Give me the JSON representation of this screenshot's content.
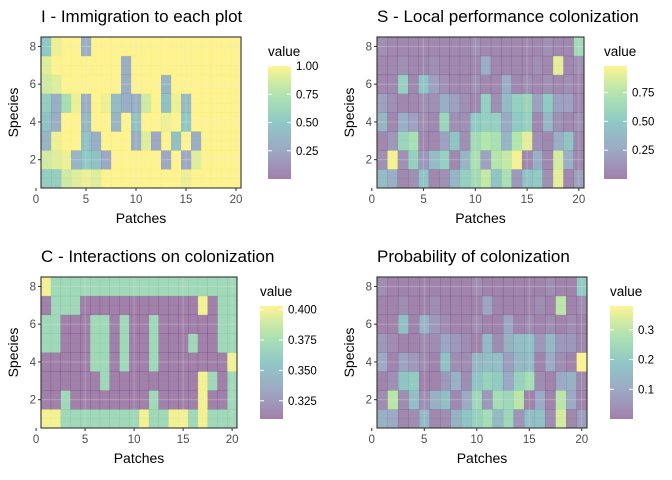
{
  "panel_titles": [
    "I - Immigration to each plot",
    "S - Local performance colonization",
    "C - Interactions on colonization",
    "Probability of colonization"
  ],
  "palette": {
    "stops": [
      "#440154",
      "#3b528b",
      "#21918c",
      "#5ec962",
      "#fde725"
    ],
    "opacity": 0.5,
    "grid_major": "#e6e6e6",
    "grid_minor": "#f2f2f2",
    "panel_border": "#333333"
  },
  "chart_data": [
    {
      "type": "heatmap",
      "title": "I - Immigration to each plot",
      "xlabel": "Patches",
      "ylabel": "Species",
      "xlim": [
        0.5,
        20.5
      ],
      "ylim": [
        0.5,
        8.5
      ],
      "x_ticks": [
        0,
        5,
        10,
        15,
        20
      ],
      "y_ticks": [
        2,
        4,
        6,
        8
      ],
      "legend": {
        "title": "value",
        "limits": [
          0.0,
          1.0
        ],
        "breaks": [
          0.25,
          0.5,
          0.75,
          1.0
        ],
        "labels": [
          "0.25",
          "0.50",
          "0.75",
          "1.00"
        ]
      },
      "x": [
        1,
        2,
        3,
        4,
        5,
        6,
        7,
        8,
        9,
        10,
        11,
        12,
        13,
        14,
        15,
        16,
        17,
        18,
        19,
        20
      ],
      "y": [
        1,
        2,
        3,
        4,
        5,
        6,
        7,
        8
      ],
      "z": [
        [
          0.55,
          0.55,
          0.85,
          0.9,
          0.95,
          0.9,
          1,
          1,
          1,
          1,
          1,
          1,
          1,
          1,
          0.95,
          1,
          1,
          1,
          1,
          1
        ],
        [
          0.85,
          0.9,
          0.95,
          0.35,
          0.5,
          0.45,
          0.25,
          1,
          1,
          1,
          1,
          1,
          0.25,
          1,
          0.25,
          0.9,
          1,
          1,
          1,
          1
        ],
        [
          0.35,
          0.95,
          1,
          1,
          0.45,
          0.3,
          1,
          1,
          1,
          0.3,
          0.9,
          0.25,
          1,
          0.45,
          1,
          0.3,
          1,
          1,
          1,
          1
        ],
        [
          0.45,
          0.3,
          1,
          1,
          0.35,
          1,
          1,
          0.35,
          1,
          0.45,
          1,
          1,
          0.95,
          1,
          0.5,
          1,
          1,
          1,
          1,
          1
        ],
        [
          0.55,
          0.3,
          0.7,
          0.95,
          0.3,
          1,
          0.95,
          0.4,
          0.3,
          0.3,
          0.85,
          1,
          0.45,
          0.95,
          0.4,
          1,
          1,
          1,
          1,
          1
        ],
        [
          0.85,
          0.9,
          1,
          1,
          1,
          1,
          1,
          1,
          0.3,
          1,
          1,
          1,
          0.35,
          1,
          1,
          1,
          1,
          1,
          1,
          1
        ],
        [
          0.9,
          1,
          1,
          1,
          1,
          1,
          1,
          1,
          0.3,
          1,
          1,
          1,
          1,
          1,
          1,
          1,
          1,
          1,
          1,
          1
        ],
        [
          0.5,
          0.95,
          1,
          1,
          0.3,
          1,
          1,
          1,
          1,
          1,
          1,
          1,
          1,
          1,
          1,
          1,
          1,
          1,
          1,
          1
        ]
      ]
    },
    {
      "type": "heatmap",
      "title": "S - Local performance colonization",
      "xlabel": "Patches",
      "ylabel": "Species",
      "xlim": [
        0.5,
        20.5
      ],
      "ylim": [
        0.5,
        8.5
      ],
      "x_ticks": [
        0,
        5,
        10,
        15,
        20
      ],
      "y_ticks": [
        2,
        4,
        6,
        8
      ],
      "legend": {
        "title": "value",
        "limits": [
          0.0,
          0.98
        ],
        "breaks": [
          0.25,
          0.5,
          0.75
        ],
        "labels": [
          "0.25",
          "0.50",
          "0.75"
        ]
      },
      "x": [
        1,
        2,
        3,
        4,
        5,
        6,
        7,
        8,
        9,
        10,
        11,
        12,
        13,
        14,
        15,
        16,
        17,
        18,
        19,
        20
      ],
      "y": [
        1,
        2,
        3,
        4,
        5,
        6,
        7,
        8
      ],
      "z": [
        [
          0.4,
          0.3,
          0.05,
          0.1,
          0.45,
          0.05,
          0.1,
          0.35,
          0.55,
          0.65,
          0.8,
          0.45,
          0.7,
          0.15,
          0.45,
          0.5,
          0.1,
          0.9,
          0.05,
          0.2
        ],
        [
          0.1,
          0.95,
          0.1,
          0.55,
          0.15,
          0.4,
          0.55,
          0.05,
          0.35,
          0.7,
          0.2,
          0.75,
          0.8,
          0.95,
          0.05,
          0.3,
          0.05,
          0.85,
          0.3,
          0.05
        ],
        [
          0.05,
          0.15,
          0.6,
          0.7,
          0.05,
          0.05,
          0.2,
          0.45,
          0.1,
          0.65,
          0.75,
          0.7,
          0.35,
          0.75,
          0.9,
          0.1,
          0.05,
          0.3,
          0.45,
          0.05
        ],
        [
          0.35,
          0.05,
          0.3,
          0.2,
          0.1,
          0.05,
          0.6,
          0.1,
          0.1,
          0.5,
          0.55,
          0.55,
          0.25,
          0.5,
          0.55,
          0.05,
          0.35,
          0.1,
          0.05,
          0.1
        ],
        [
          0.2,
          0.1,
          0.05,
          0.05,
          0.1,
          0.1,
          0.3,
          0.2,
          0.1,
          0.05,
          0.55,
          0.1,
          0.4,
          0.55,
          0.6,
          0.2,
          0.5,
          0.2,
          0.2,
          0.05
        ],
        [
          0.05,
          0.05,
          0.55,
          0.05,
          0.45,
          0.2,
          0.1,
          0.05,
          0.05,
          0.1,
          0.05,
          0.05,
          0.3,
          0.05,
          0.1,
          0.05,
          0.1,
          0.05,
          0.1,
          0.05
        ],
        [
          0.05,
          0.05,
          0.1,
          0.05,
          0.05,
          0.1,
          0.05,
          0.05,
          0.05,
          0.05,
          0.3,
          0.05,
          0.05,
          0.05,
          0.05,
          0.1,
          0.05,
          0.9,
          0.05,
          0.1
        ],
        [
          0.1,
          0.05,
          0.05,
          0.05,
          0.05,
          0.05,
          0.05,
          0.05,
          0.05,
          0.1,
          0.05,
          0.05,
          0.05,
          0.05,
          0.05,
          0.05,
          0.1,
          0.05,
          0.05,
          0.65
        ]
      ]
    },
    {
      "type": "heatmap",
      "title": "C - Interactions on colonization",
      "xlabel": "Patches",
      "ylabel": "Species",
      "xlim": [
        0.5,
        20.5
      ],
      "ylim": [
        0.5,
        8.5
      ],
      "x_ticks": [
        0,
        5,
        10,
        15,
        20
      ],
      "y_ticks": [
        2,
        4,
        6,
        8
      ],
      "legend": {
        "title": "value",
        "limits": [
          0.31,
          0.403
        ],
        "breaks": [
          0.325,
          0.35,
          0.375,
          0.4
        ],
        "labels": [
          "0.325",
          "0.350",
          "0.375",
          "0.400"
        ]
      },
      "x": [
        1,
        2,
        3,
        4,
        5,
        6,
        7,
        8,
        9,
        10,
        11,
        12,
        13,
        14,
        15,
        16,
        17,
        18,
        19,
        20
      ],
      "y": [
        1,
        2,
        3,
        4,
        5,
        6,
        7,
        8
      ],
      "z": [
        [
          0.4,
          0.4,
          0.37,
          0.37,
          0.37,
          0.37,
          0.37,
          0.37,
          0.37,
          0.37,
          0.4,
          0.37,
          0.37,
          0.4,
          0.4,
          0.37,
          0.4,
          0.37,
          0.37,
          0.37
        ],
        [
          0.31,
          0.31,
          0.37,
          0.31,
          0.31,
          0.31,
          0.31,
          0.31,
          0.31,
          0.31,
          0.31,
          0.37,
          0.31,
          0.31,
          0.31,
          0.31,
          0.4,
          0.31,
          0.31,
          0.37
        ],
        [
          0.31,
          0.31,
          0.31,
          0.31,
          0.31,
          0.31,
          0.37,
          0.31,
          0.31,
          0.31,
          0.31,
          0.31,
          0.31,
          0.31,
          0.31,
          0.31,
          0.4,
          0.37,
          0.31,
          0.37
        ],
        [
          0.31,
          0.31,
          0.31,
          0.31,
          0.31,
          0.37,
          0.37,
          0.31,
          0.37,
          0.31,
          0.31,
          0.37,
          0.31,
          0.31,
          0.31,
          0.31,
          0.31,
          0.31,
          0.31,
          0.4
        ],
        [
          0.37,
          0.37,
          0.31,
          0.31,
          0.31,
          0.37,
          0.37,
          0.31,
          0.37,
          0.31,
          0.31,
          0.37,
          0.31,
          0.31,
          0.31,
          0.37,
          0.31,
          0.31,
          0.37,
          0.37
        ],
        [
          0.37,
          0.37,
          0.31,
          0.31,
          0.31,
          0.37,
          0.37,
          0.31,
          0.37,
          0.31,
          0.31,
          0.37,
          0.31,
          0.31,
          0.31,
          0.31,
          0.31,
          0.31,
          0.37,
          0.37
        ],
        [
          0.31,
          0.37,
          0.37,
          0.37,
          0.31,
          0.31,
          0.31,
          0.31,
          0.31,
          0.31,
          0.31,
          0.31,
          0.31,
          0.31,
          0.31,
          0.31,
          0.4,
          0.31,
          0.37,
          0.37
        ],
        [
          0.4,
          0.37,
          0.37,
          0.37,
          0.37,
          0.37,
          0.37,
          0.37,
          0.37,
          0.37,
          0.37,
          0.37,
          0.37,
          0.37,
          0.37,
          0.37,
          0.37,
          0.37,
          0.37,
          0.37
        ]
      ]
    },
    {
      "type": "heatmap",
      "title": "Probability of colonization",
      "xlabel": "Patches",
      "ylabel": "Species",
      "xlim": [
        0.5,
        20.5
      ],
      "ylim": [
        0.5,
        8.5
      ],
      "x_ticks": [
        0,
        5,
        10,
        15,
        20
      ],
      "y_ticks": [
        2,
        4,
        6,
        8
      ],
      "legend": {
        "title": "value",
        "limits": [
          0.0,
          0.38
        ],
        "breaks": [
          0.1,
          0.2,
          0.3
        ],
        "labels": [
          "0.1",
          "0.2",
          "0.3"
        ]
      },
      "x": [
        1,
        2,
        3,
        4,
        5,
        6,
        7,
        8,
        9,
        10,
        11,
        12,
        13,
        14,
        15,
        16,
        17,
        18,
        19,
        20
      ],
      "y": [
        1,
        2,
        3,
        4,
        5,
        6,
        7,
        8
      ],
      "z": [
        [
          0.12,
          0.1,
          0.02,
          0.03,
          0.15,
          0.02,
          0.03,
          0.12,
          0.18,
          0.22,
          0.26,
          0.15,
          0.24,
          0.05,
          0.16,
          0.17,
          0.03,
          0.33,
          0.02,
          0.07
        ],
        [
          0.03,
          0.3,
          0.03,
          0.16,
          0.04,
          0.12,
          0.16,
          0.02,
          0.1,
          0.24,
          0.06,
          0.26,
          0.24,
          0.3,
          0.01,
          0.1,
          0.01,
          0.3,
          0.1,
          0.01
        ],
        [
          0.01,
          0.04,
          0.18,
          0.2,
          0.01,
          0.01,
          0.06,
          0.12,
          0.03,
          0.18,
          0.22,
          0.2,
          0.1,
          0.22,
          0.26,
          0.03,
          0.01,
          0.1,
          0.12,
          0.02
        ],
        [
          0.1,
          0.01,
          0.08,
          0.06,
          0.03,
          0.01,
          0.17,
          0.03,
          0.03,
          0.14,
          0.16,
          0.16,
          0.07,
          0.14,
          0.15,
          0.01,
          0.1,
          0.03,
          0.01,
          0.38
        ],
        [
          0.06,
          0.03,
          0.01,
          0.01,
          0.03,
          0.03,
          0.09,
          0.06,
          0.03,
          0.01,
          0.15,
          0.03,
          0.12,
          0.16,
          0.17,
          0.06,
          0.14,
          0.06,
          0.06,
          0.02
        ],
        [
          0.01,
          0.01,
          0.17,
          0.01,
          0.13,
          0.06,
          0.03,
          0.01,
          0.01,
          0.03,
          0.01,
          0.01,
          0.09,
          0.01,
          0.03,
          0.01,
          0.03,
          0.01,
          0.03,
          0.01
        ],
        [
          0.01,
          0.01,
          0.03,
          0.01,
          0.01,
          0.03,
          0.01,
          0.01,
          0.01,
          0.01,
          0.09,
          0.01,
          0.01,
          0.01,
          0.01,
          0.03,
          0.01,
          0.3,
          0.01,
          0.03
        ],
        [
          0.03,
          0.01,
          0.01,
          0.01,
          0.01,
          0.01,
          0.01,
          0.01,
          0.01,
          0.03,
          0.01,
          0.01,
          0.01,
          0.01,
          0.01,
          0.01,
          0.03,
          0.01,
          0.01,
          0.2
        ]
      ]
    }
  ]
}
